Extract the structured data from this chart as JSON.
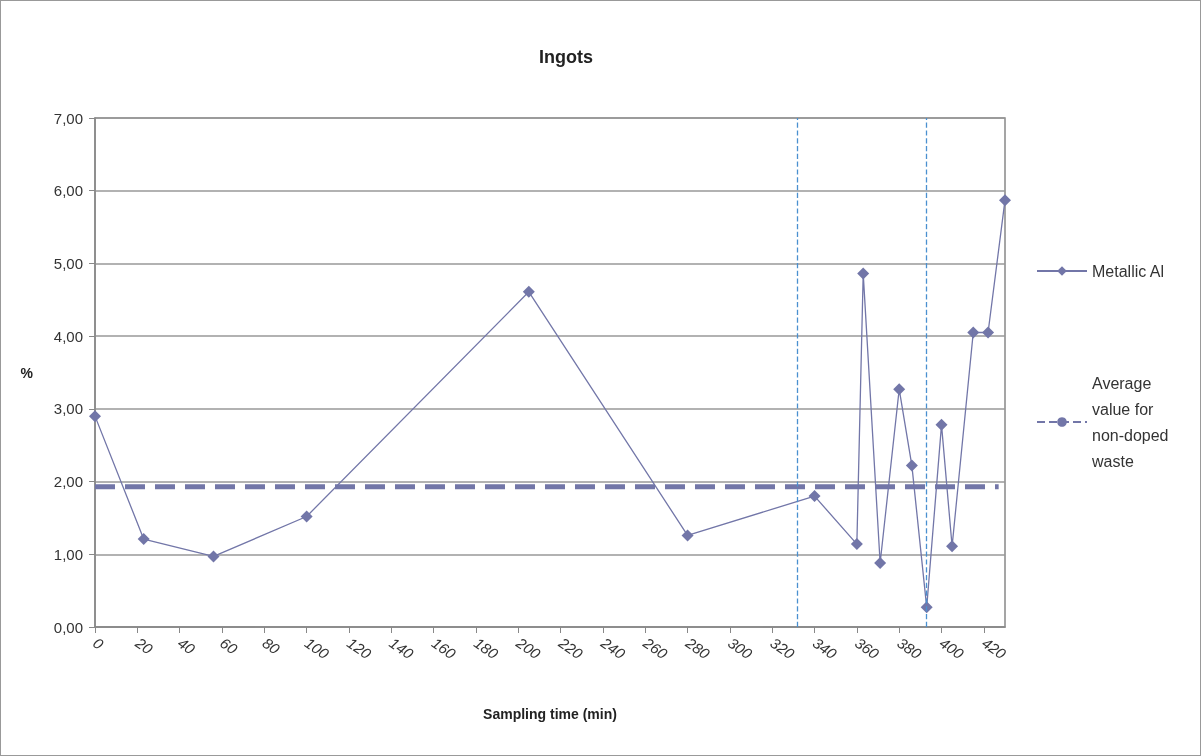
{
  "chart_data": {
    "type": "line",
    "title": "Ingots",
    "xlabel": "Sampling time (min)",
    "ylabel": "%",
    "xlim": [
      0,
      430
    ],
    "xticks": [
      0,
      20,
      40,
      60,
      80,
      100,
      120,
      140,
      160,
      180,
      200,
      220,
      240,
      260,
      280,
      300,
      320,
      340,
      360,
      380,
      400,
      420
    ],
    "ylim": [
      0,
      7
    ],
    "yticks": [
      {
        "value": 0,
        "label": "0,00"
      },
      {
        "value": 1,
        "label": "1,00"
      },
      {
        "value": 2,
        "label": "2,00"
      },
      {
        "value": 3,
        "label": "3,00"
      },
      {
        "value": 4,
        "label": "4,00"
      },
      {
        "value": 5,
        "label": "5,00"
      },
      {
        "value": 6,
        "label": "6,00"
      },
      {
        "value": 7,
        "label": "7,00"
      }
    ],
    "grid": "y",
    "legend": "right",
    "marker": "diamond",
    "line_style": "solid",
    "series": [
      {
        "name": "Metallic Al",
        "color": "#7276a8",
        "x": [
          0,
          23,
          56,
          100,
          205,
          280,
          340,
          360,
          363,
          371,
          380,
          386,
          393,
          400,
          405,
          415,
          422,
          430
        ],
        "values": [
          2.9,
          1.21,
          0.97,
          1.52,
          4.61,
          1.26,
          1.8,
          1.14,
          4.86,
          0.88,
          3.27,
          2.22,
          0.27,
          2.78,
          1.11,
          4.05,
          4.05,
          5.87
        ]
      },
      {
        "name": "Average value for non-doped waste",
        "color": "#7276a8",
        "marker": "none",
        "line_style": "dashed",
        "x": [
          0,
          427
        ],
        "values": [
          1.93,
          1.93
        ]
      }
    ],
    "ref_lines": [
      {
        "axis": "x",
        "value": 332,
        "color": "#4a90d0",
        "line_style": "dashed"
      },
      {
        "axis": "x",
        "value": 393,
        "color": "#4a90d0",
        "line_style": "dashed"
      }
    ]
  }
}
